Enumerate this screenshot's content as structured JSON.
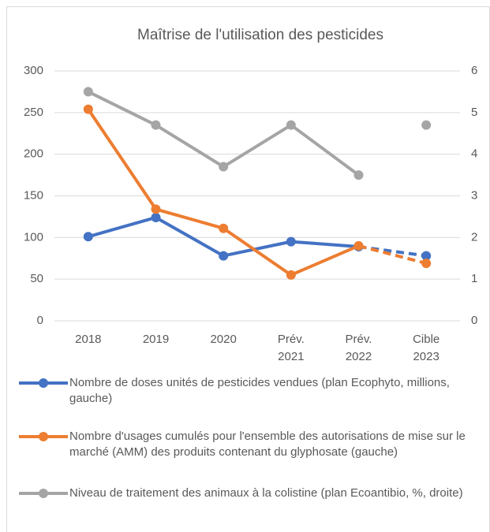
{
  "chart_data": {
    "type": "line",
    "title": "Maîtrise de l'utilisation des pesticides",
    "categories": [
      "2018",
      "2019",
      "2020",
      "Prév. 2021",
      "Prév. 2022",
      "Cible 2023"
    ],
    "series": [
      {
        "name": "Nombre de doses unités de pesticides vendues (plan Ecophyto, millions, gauche)",
        "color": "#4472c4",
        "values": [
          101,
          124,
          78,
          95,
          89,
          78
        ],
        "dashed_from": 4
      },
      {
        "name": "Nombre d'usages cumulés pour l'ensemble des autorisations de mise sur le marché (AMM) des produits contenant du glyphosate (gauche)",
        "color": "#ed7d31",
        "values": [
          254,
          134,
          111,
          55,
          90,
          69
        ],
        "dashed_from": 4
      },
      {
        "name": "Niveau de traitement des animaux à la colistine (plan Ecoantibio, %, droite)",
        "color": "#a5a5a5",
        "values": [
          5.5,
          4.7,
          3.7,
          4.7,
          3.5,
          4.7
        ],
        "axis": "y2",
        "line_break_before": 5
      }
    ],
    "ylim": [
      0,
      300
    ],
    "yticks": [
      0,
      50,
      100,
      150,
      200,
      250,
      300
    ],
    "y2lim": [
      0,
      6
    ],
    "y2ticks": [
      0,
      1,
      2,
      3,
      4,
      5,
      6
    ],
    "grid": true,
    "legend": "bottom"
  }
}
